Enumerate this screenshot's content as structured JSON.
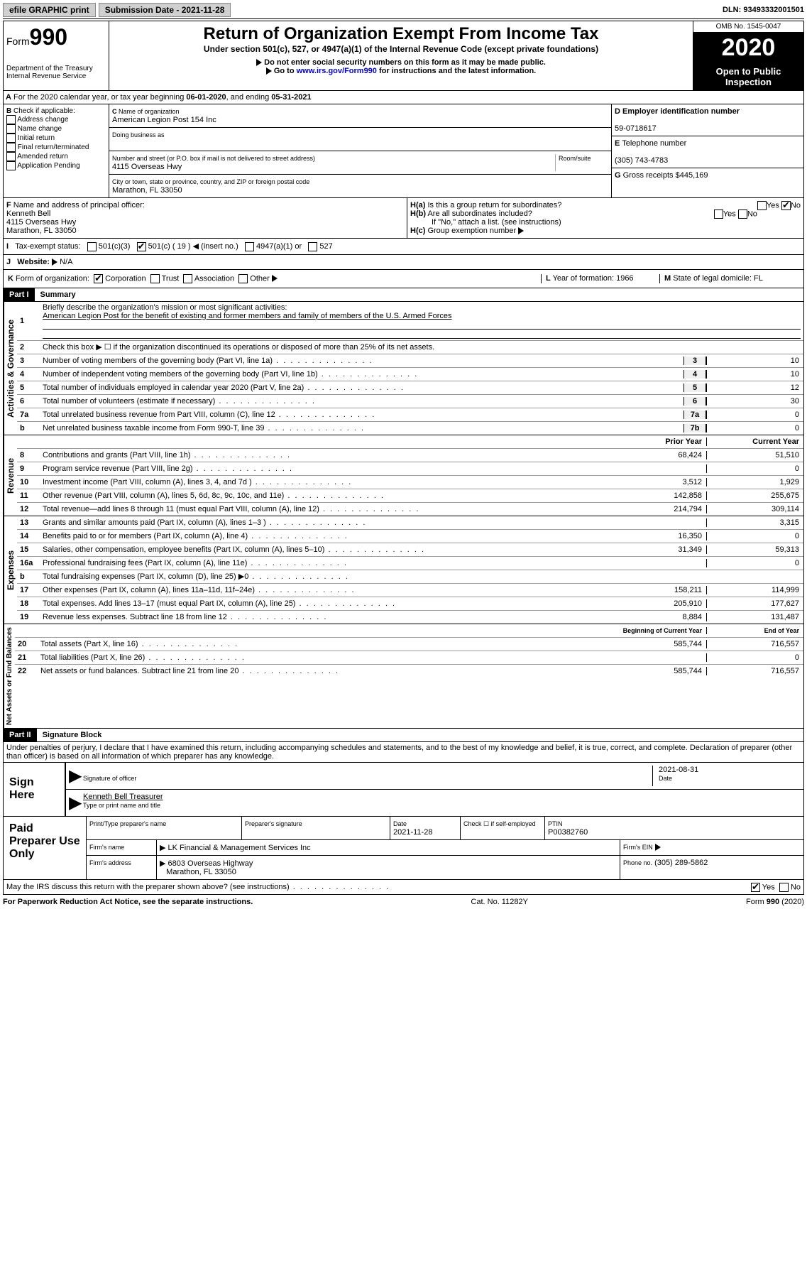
{
  "topbar": {
    "efile": "efile GRAPHIC print",
    "subLabel": "Submission Date - 2021-11-28",
    "dln": "DLN: 93493332001501"
  },
  "header": {
    "formWord": "Form",
    "formNum": "990",
    "dept": "Department of the Treasury",
    "irs": "Internal Revenue Service",
    "title": "Return of Organization Exempt From Income Tax",
    "subtitle": "Under section 501(c), 527, or 4947(a)(1) of the Internal Revenue Code (except private foundations)",
    "note1": "Do not enter social security numbers on this form as it may be made public.",
    "note2": "Go to ",
    "link": "www.irs.gov/Form990",
    "note2b": " for instructions and the latest information.",
    "omb": "OMB No. 1545-0047",
    "year": "2020",
    "open": "Open to Public Inspection"
  },
  "lineA": {
    "text": "For the 2020 calendar year, or tax year beginning ",
    "begin": "06-01-2020",
    "mid": ", and ending ",
    "end": "05-31-2021"
  },
  "boxB": {
    "hdr": "Check if applicable:",
    "items": [
      "Address change",
      "Name change",
      "Initial return",
      "Final return/terminated",
      "Amended return",
      "Application Pending"
    ]
  },
  "boxC": {
    "nameLbl": "Name of organization",
    "name": "American Legion Post 154 Inc",
    "dbaLbl": "Doing business as",
    "dba": "",
    "addrLbl": "Number and street (or P.O. box if mail is not delivered to street address)",
    "suite": "Room/suite",
    "addr": "4115 Overseas Hwy",
    "cityLbl": "City or town, state or province, country, and ZIP or foreign postal code",
    "city": "Marathon, FL  33050"
  },
  "boxD": {
    "lbl": "Employer identification number",
    "val": "59-0718617"
  },
  "boxE": {
    "lbl": "Telephone number",
    "val": "(305) 743-4783"
  },
  "boxG": {
    "lbl": "Gross receipts $",
    "val": "445,169"
  },
  "boxF": {
    "lbl": "Name and address of principal officer:",
    "name": "Kenneth Bell",
    "addr1": "4115 Overseas Hwy",
    "addr2": "Marathon, FL  33050"
  },
  "boxH": {
    "a": "Is this a group return for subordinates?",
    "aYes": "Yes",
    "aNo": "No",
    "b": "Are all subordinates included?",
    "bNote": "If \"No,\" attach a list. (see instructions)",
    "c": "Group exemption number"
  },
  "taxStatus": {
    "lbl": "Tax-exempt status:",
    "opts": [
      "501(c)(3)",
      "501(c) ( 19 )",
      "(insert no.)",
      "4947(a)(1) or",
      "527"
    ]
  },
  "website": {
    "lbl": "Website:",
    "val": "N/A"
  },
  "rowK": {
    "lbl": "Form of organization:",
    "opts": [
      "Corporation",
      "Trust",
      "Association",
      "Other"
    ],
    "yearLbl": "Year of formation:",
    "year": "1966",
    "stateLbl": "State of legal domicile:",
    "state": "FL"
  },
  "part1": {
    "hdr": "Part I",
    "title": "Summary"
  },
  "gov": {
    "label": "Activities & Governance",
    "l1": {
      "num": "1",
      "txt": "Briefly describe the organization's mission or most significant activities:",
      "val": "American Legion Post for the benefit of existing and former members and family of members of the U.S. Armed Forces"
    },
    "l2": {
      "num": "2",
      "txt": "Check this box ▶ ☐  if the organization discontinued its operations or disposed of more than 25% of its net assets."
    },
    "l3": {
      "num": "3",
      "txt": "Number of voting members of the governing body (Part VI, line 1a)",
      "cell": "3",
      "val": "10"
    },
    "l4": {
      "num": "4",
      "txt": "Number of independent voting members of the governing body (Part VI, line 1b)",
      "cell": "4",
      "val": "10"
    },
    "l5": {
      "num": "5",
      "txt": "Total number of individuals employed in calendar year 2020 (Part V, line 2a)",
      "cell": "5",
      "val": "12"
    },
    "l6": {
      "num": "6",
      "txt": "Total number of volunteers (estimate if necessary)",
      "cell": "6",
      "val": "30"
    },
    "l7a": {
      "num": "7a",
      "txt": "Total unrelated business revenue from Part VIII, column (C), line 12",
      "cell": "7a",
      "val": "0"
    },
    "l7b": {
      "num": "b",
      "txt": "Net unrelated business taxable income from Form 990-T, line 39",
      "cell": "7b",
      "val": "0"
    }
  },
  "colHdr": {
    "prior": "Prior Year",
    "current": "Current Year"
  },
  "rev": {
    "label": "Revenue",
    "lines": [
      {
        "num": "8",
        "txt": "Contributions and grants (Part VIII, line 1h)",
        "p": "68,424",
        "c": "51,510"
      },
      {
        "num": "9",
        "txt": "Program service revenue (Part VIII, line 2g)",
        "p": "",
        "c": "0"
      },
      {
        "num": "10",
        "txt": "Investment income (Part VIII, column (A), lines 3, 4, and 7d )",
        "p": "3,512",
        "c": "1,929"
      },
      {
        "num": "11",
        "txt": "Other revenue (Part VIII, column (A), lines 5, 6d, 8c, 9c, 10c, and 11e)",
        "p": "142,858",
        "c": "255,675"
      },
      {
        "num": "12",
        "txt": "Total revenue—add lines 8 through 11 (must equal Part VIII, column (A), line 12)",
        "p": "214,794",
        "c": "309,114"
      }
    ]
  },
  "exp": {
    "label": "Expenses",
    "lines": [
      {
        "num": "13",
        "txt": "Grants and similar amounts paid (Part IX, column (A), lines 1–3 )",
        "p": "",
        "c": "3,315"
      },
      {
        "num": "14",
        "txt": "Benefits paid to or for members (Part IX, column (A), line 4)",
        "p": "16,350",
        "c": "0"
      },
      {
        "num": "15",
        "txt": "Salaries, other compensation, employee benefits (Part IX, column (A), lines 5–10)",
        "p": "31,349",
        "c": "59,313"
      },
      {
        "num": "16a",
        "txt": "Professional fundraising fees (Part IX, column (A), line 11e)",
        "p": "",
        "c": "0"
      },
      {
        "num": "b",
        "txt": "Total fundraising expenses (Part IX, column (D), line 25) ▶0",
        "gray": true
      },
      {
        "num": "17",
        "txt": "Other expenses (Part IX, column (A), lines 11a–11d, 11f–24e)",
        "p": "158,211",
        "c": "114,999"
      },
      {
        "num": "18",
        "txt": "Total expenses. Add lines 13–17 (must equal Part IX, column (A), line 25)",
        "p": "205,910",
        "c": "177,627"
      },
      {
        "num": "19",
        "txt": "Revenue less expenses. Subtract line 18 from line 12",
        "p": "8,884",
        "c": "131,487"
      }
    ]
  },
  "colHdr2": {
    "prior": "Beginning of Current Year",
    "current": "End of Year"
  },
  "net": {
    "label": "Net Assets or Fund Balances",
    "lines": [
      {
        "num": "20",
        "txt": "Total assets (Part X, line 16)",
        "p": "585,744",
        "c": "716,557"
      },
      {
        "num": "21",
        "txt": "Total liabilities (Part X, line 26)",
        "p": "",
        "c": "0"
      },
      {
        "num": "22",
        "txt": "Net assets or fund balances. Subtract line 21 from line 20",
        "p": "585,744",
        "c": "716,557"
      }
    ]
  },
  "part2": {
    "hdr": "Part II",
    "title": "Signature Block"
  },
  "decl": "Under penalties of perjury, I declare that I have examined this return, including accompanying schedules and statements, and to the best of my knowledge and belief, it is true, correct, and complete. Declaration of preparer (other than officer) is based on all information of which preparer has any knowledge.",
  "sign": {
    "label": "Sign Here",
    "sigLbl": "Signature of officer",
    "date": "2021-08-31",
    "dateLbl": "Date",
    "name": "Kenneth Bell Treasurer",
    "nameLbl": "Type or print name and title"
  },
  "paid": {
    "label": "Paid Preparer Use Only",
    "nameLbl": "Print/Type preparer's name",
    "sigLbl": "Preparer's signature",
    "dateLbl": "Date",
    "date": "2021-11-28",
    "checkLbl": "Check ☐ if self-employed",
    "ptinLbl": "PTIN",
    "ptin": "P00382760",
    "firmNameLbl": "Firm's name",
    "firmName": "LK Financial & Management Services Inc",
    "einLbl": "Firm's EIN",
    "firmAddrLbl": "Firm's address",
    "firmAddr": "6803 Overseas Highway",
    "firmCity": "Marathon, FL  33050",
    "phoneLbl": "Phone no.",
    "phone": "(305) 289-5862"
  },
  "discuss": {
    "txt": "May the IRS discuss this return with the preparer shown above? (see instructions)",
    "yes": "Yes",
    "no": "No"
  },
  "footer": {
    "left": "For Paperwork Reduction Act Notice, see the separate instructions.",
    "mid": "Cat. No. 11282Y",
    "right": "Form 990 (2020)"
  }
}
